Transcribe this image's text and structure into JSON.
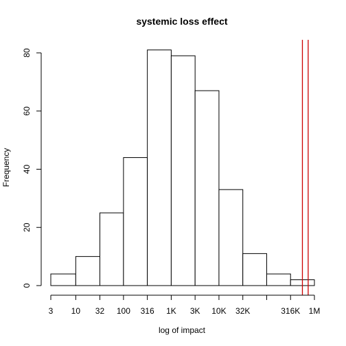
{
  "chart_data": {
    "type": "bar",
    "title": "systemic loss effect",
    "xlabel": "log of impact",
    "ylabel": "Frequency",
    "x_scale": "log10",
    "xlim": [
      3,
      1000000
    ],
    "ylim": [
      0,
      80
    ],
    "x_ticks": [
      {
        "value": 3,
        "label": "3"
      },
      {
        "value": 10,
        "label": "10"
      },
      {
        "value": 32,
        "label": "32"
      },
      {
        "value": 100,
        "label": "100"
      },
      {
        "value": 316,
        "label": "316"
      },
      {
        "value": 1000,
        "label": "1K"
      },
      {
        "value": 3162,
        "label": "3K"
      },
      {
        "value": 10000,
        "label": "10K"
      },
      {
        "value": 31623,
        "label": "32K"
      },
      {
        "value": 100000,
        "label": ""
      },
      {
        "value": 316228,
        "label": "316K"
      },
      {
        "value": 1000000,
        "label": "1M"
      }
    ],
    "y_ticks": [
      0,
      20,
      40,
      60,
      80
    ],
    "bins": [
      {
        "from": 3,
        "to": 10,
        "count": 4
      },
      {
        "from": 10,
        "to": 32,
        "count": 10
      },
      {
        "from": 32,
        "to": 100,
        "count": 25
      },
      {
        "from": 100,
        "to": 316,
        "count": 44
      },
      {
        "from": 316,
        "to": 1000,
        "count": 81
      },
      {
        "from": 1000,
        "to": 3162,
        "count": 79
      },
      {
        "from": 3162,
        "to": 10000,
        "count": 67
      },
      {
        "from": 10000,
        "to": 31623,
        "count": 33
      },
      {
        "from": 31623,
        "to": 100000,
        "count": 11
      },
      {
        "from": 100000,
        "to": 316228,
        "count": 4
      },
      {
        "from": 316228,
        "to": 1000000,
        "count": 2
      }
    ],
    "reference_lines": [
      {
        "x": 560000,
        "color": "#cc0000"
      },
      {
        "x": 740000,
        "color": "#cc0000"
      }
    ],
    "grid": false
  }
}
